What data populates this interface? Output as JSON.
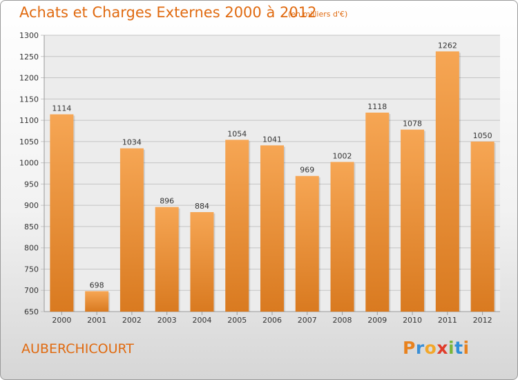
{
  "header": {
    "title": "Achats et Charges Externes 2000 à 2012",
    "unit_note": "(en milliers d'€)"
  },
  "footer": {
    "commune": "AUBERCHICOURT",
    "logo_letters": [
      "P",
      "r",
      "o",
      "x",
      "i",
      "t",
      "i"
    ]
  },
  "colors": {
    "accent": "#e06a10",
    "bar_light": "#f6a654",
    "bar_dark": "#d97a20",
    "logo": [
      "#e8821e",
      "#3a8fd6",
      "#f2a72a",
      "#e03c2a",
      "#7ab53a",
      "#2f8ed8",
      "#e8821e"
    ]
  },
  "chart_data": {
    "type": "bar",
    "title": "Achats et Charges Externes 2000 à 2012",
    "subtitle": "(en milliers d'€)",
    "categories": [
      "2000",
      "2001",
      "2002",
      "2003",
      "2004",
      "2005",
      "2006",
      "2007",
      "2008",
      "2009",
      "2010",
      "2011",
      "2012"
    ],
    "values": [
      1114,
      698,
      1034,
      896,
      884,
      1054,
      1041,
      969,
      1002,
      1118,
      1078,
      1262,
      1050
    ],
    "ylim": [
      650,
      1300
    ],
    "yticks": [
      650,
      700,
      750,
      800,
      850,
      900,
      950,
      1000,
      1050,
      1100,
      1150,
      1200,
      1250,
      1300
    ],
    "grid": true,
    "data_labels": true
  }
}
